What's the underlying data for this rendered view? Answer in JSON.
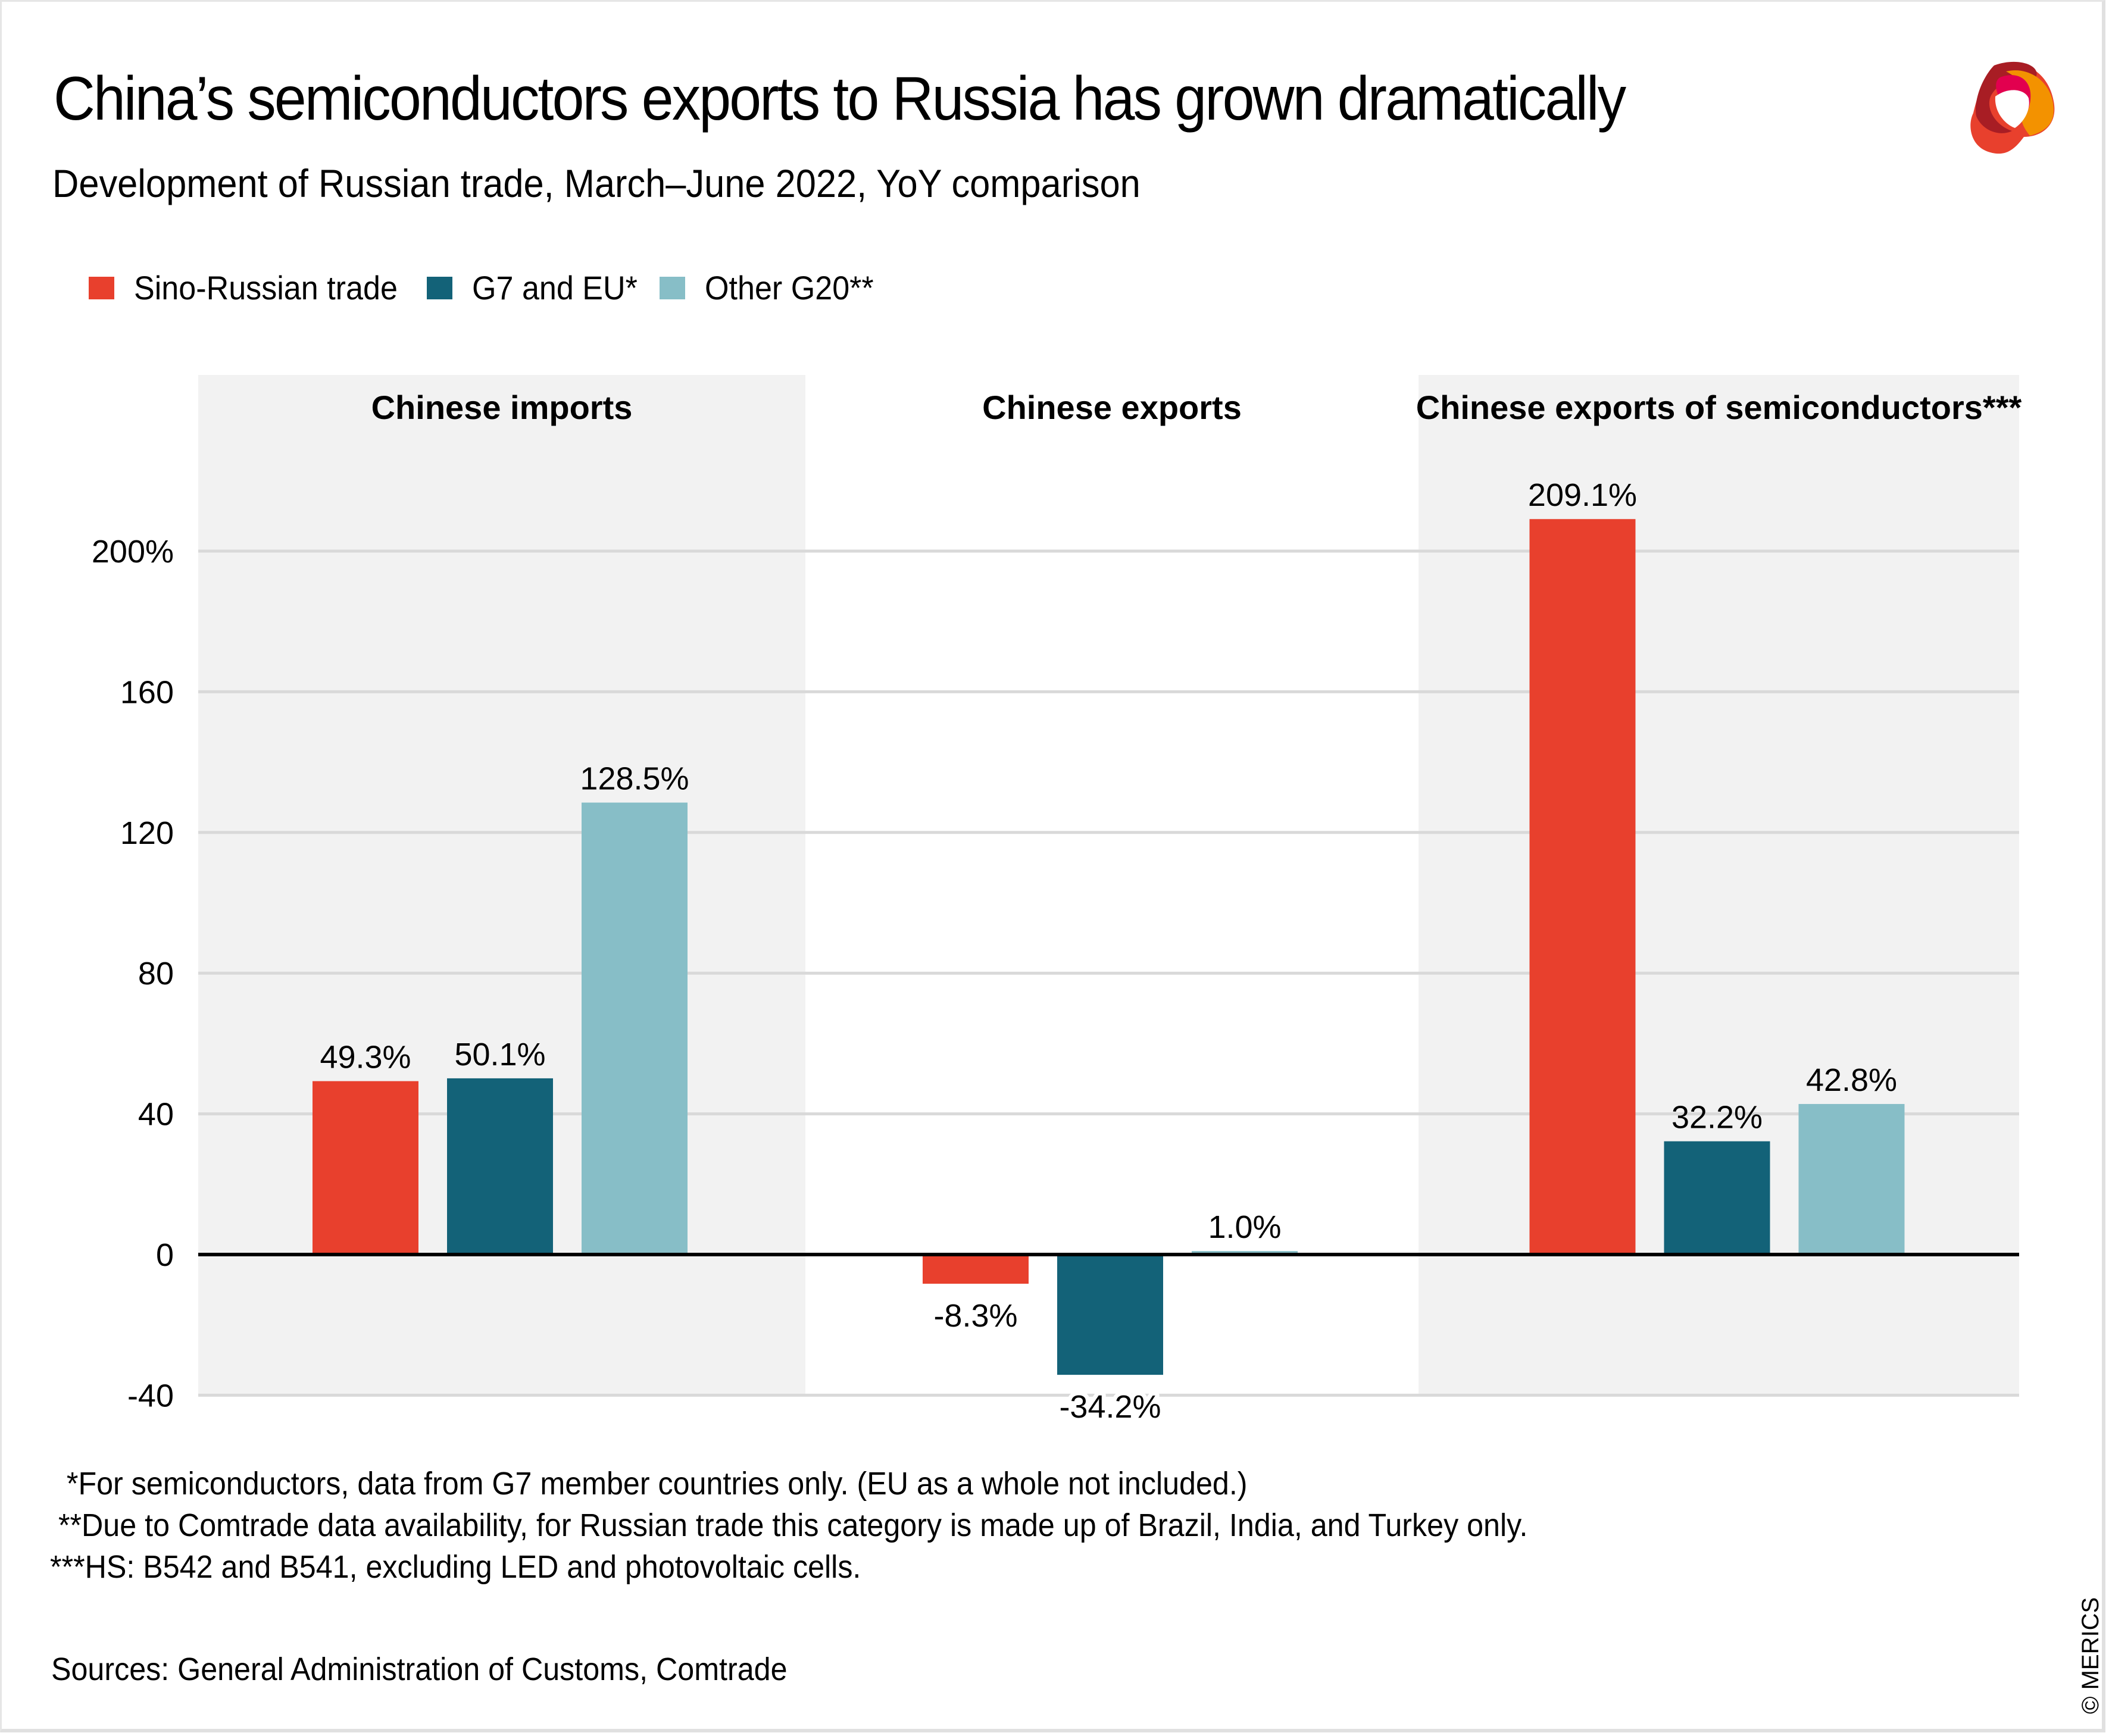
{
  "header": {
    "title": "China’s semiconductors exports to Russia has grown dramatically",
    "subtitle": "Development of Russian trade, March–June 2022, YoY comparison",
    "logo": "merics-logo-icon"
  },
  "colors": {
    "sino_russian": "#E8402D",
    "g7_eu": "#136278",
    "other_g20": "#87BEC7",
    "panel_bg": "#F2F2F2",
    "gridline": "#D9D9D9",
    "zero_line": "#000000"
  },
  "legend": [
    {
      "label": "Sino-Russian trade",
      "color": "#E8402D"
    },
    {
      "label": "G7 and EU*",
      "color": "#136278"
    },
    {
      "label": "Other G20**",
      "color": "#87BEC7"
    }
  ],
  "chart_data": {
    "type": "bar",
    "title": "China’s semiconductors exports to Russia has grown dramatically",
    "subtitle": "Development of Russian trade, March–June 2022, YoY comparison",
    "xlabel": "",
    "ylabel": "",
    "categories": [
      "Chinese imports",
      "Chinese exports",
      "Chinese exports of semiconductors***"
    ],
    "series": [
      {
        "name": "Sino-Russian trade",
        "color": "#E8402D",
        "values": [
          49.3,
          -8.3,
          209.1
        ],
        "labels": [
          "49.3%",
          "-8.3%",
          "209.1%"
        ]
      },
      {
        "name": "G7 and EU*",
        "color": "#136278",
        "values": [
          50.1,
          -34.2,
          32.2
        ],
        "labels": [
          "50.1%",
          "-34.2%",
          "32.2%"
        ]
      },
      {
        "name": "Other G20**",
        "color": "#87BEC7",
        "values": [
          128.5,
          1.0,
          42.8
        ],
        "labels": [
          "128.5%",
          "1.0%",
          "42.8%"
        ]
      }
    ],
    "ylim": [
      -40,
      200
    ],
    "yticks": [
      200,
      160,
      120,
      80,
      40,
      0,
      -40
    ],
    "ytick_labels": [
      "200%",
      "160",
      "120",
      "80",
      "40",
      "0",
      "-40"
    ],
    "grid": true,
    "legend_position": "top-left",
    "panel_shading": [
      "gray",
      "white",
      "gray"
    ]
  },
  "footnotes": [
    "  *For semiconductors, data from G7 member countries only. (EU as a whole not included.)",
    " **Due to Comtrade data availability, for Russian trade this category is made up of Brazil, India, and Turkey only.",
    "***HS: B542 and B541, excluding LED and photovoltaic cells."
  ],
  "sources": "Sources: General Administration of Customs, Comtrade",
  "copyright": "© MERICS"
}
